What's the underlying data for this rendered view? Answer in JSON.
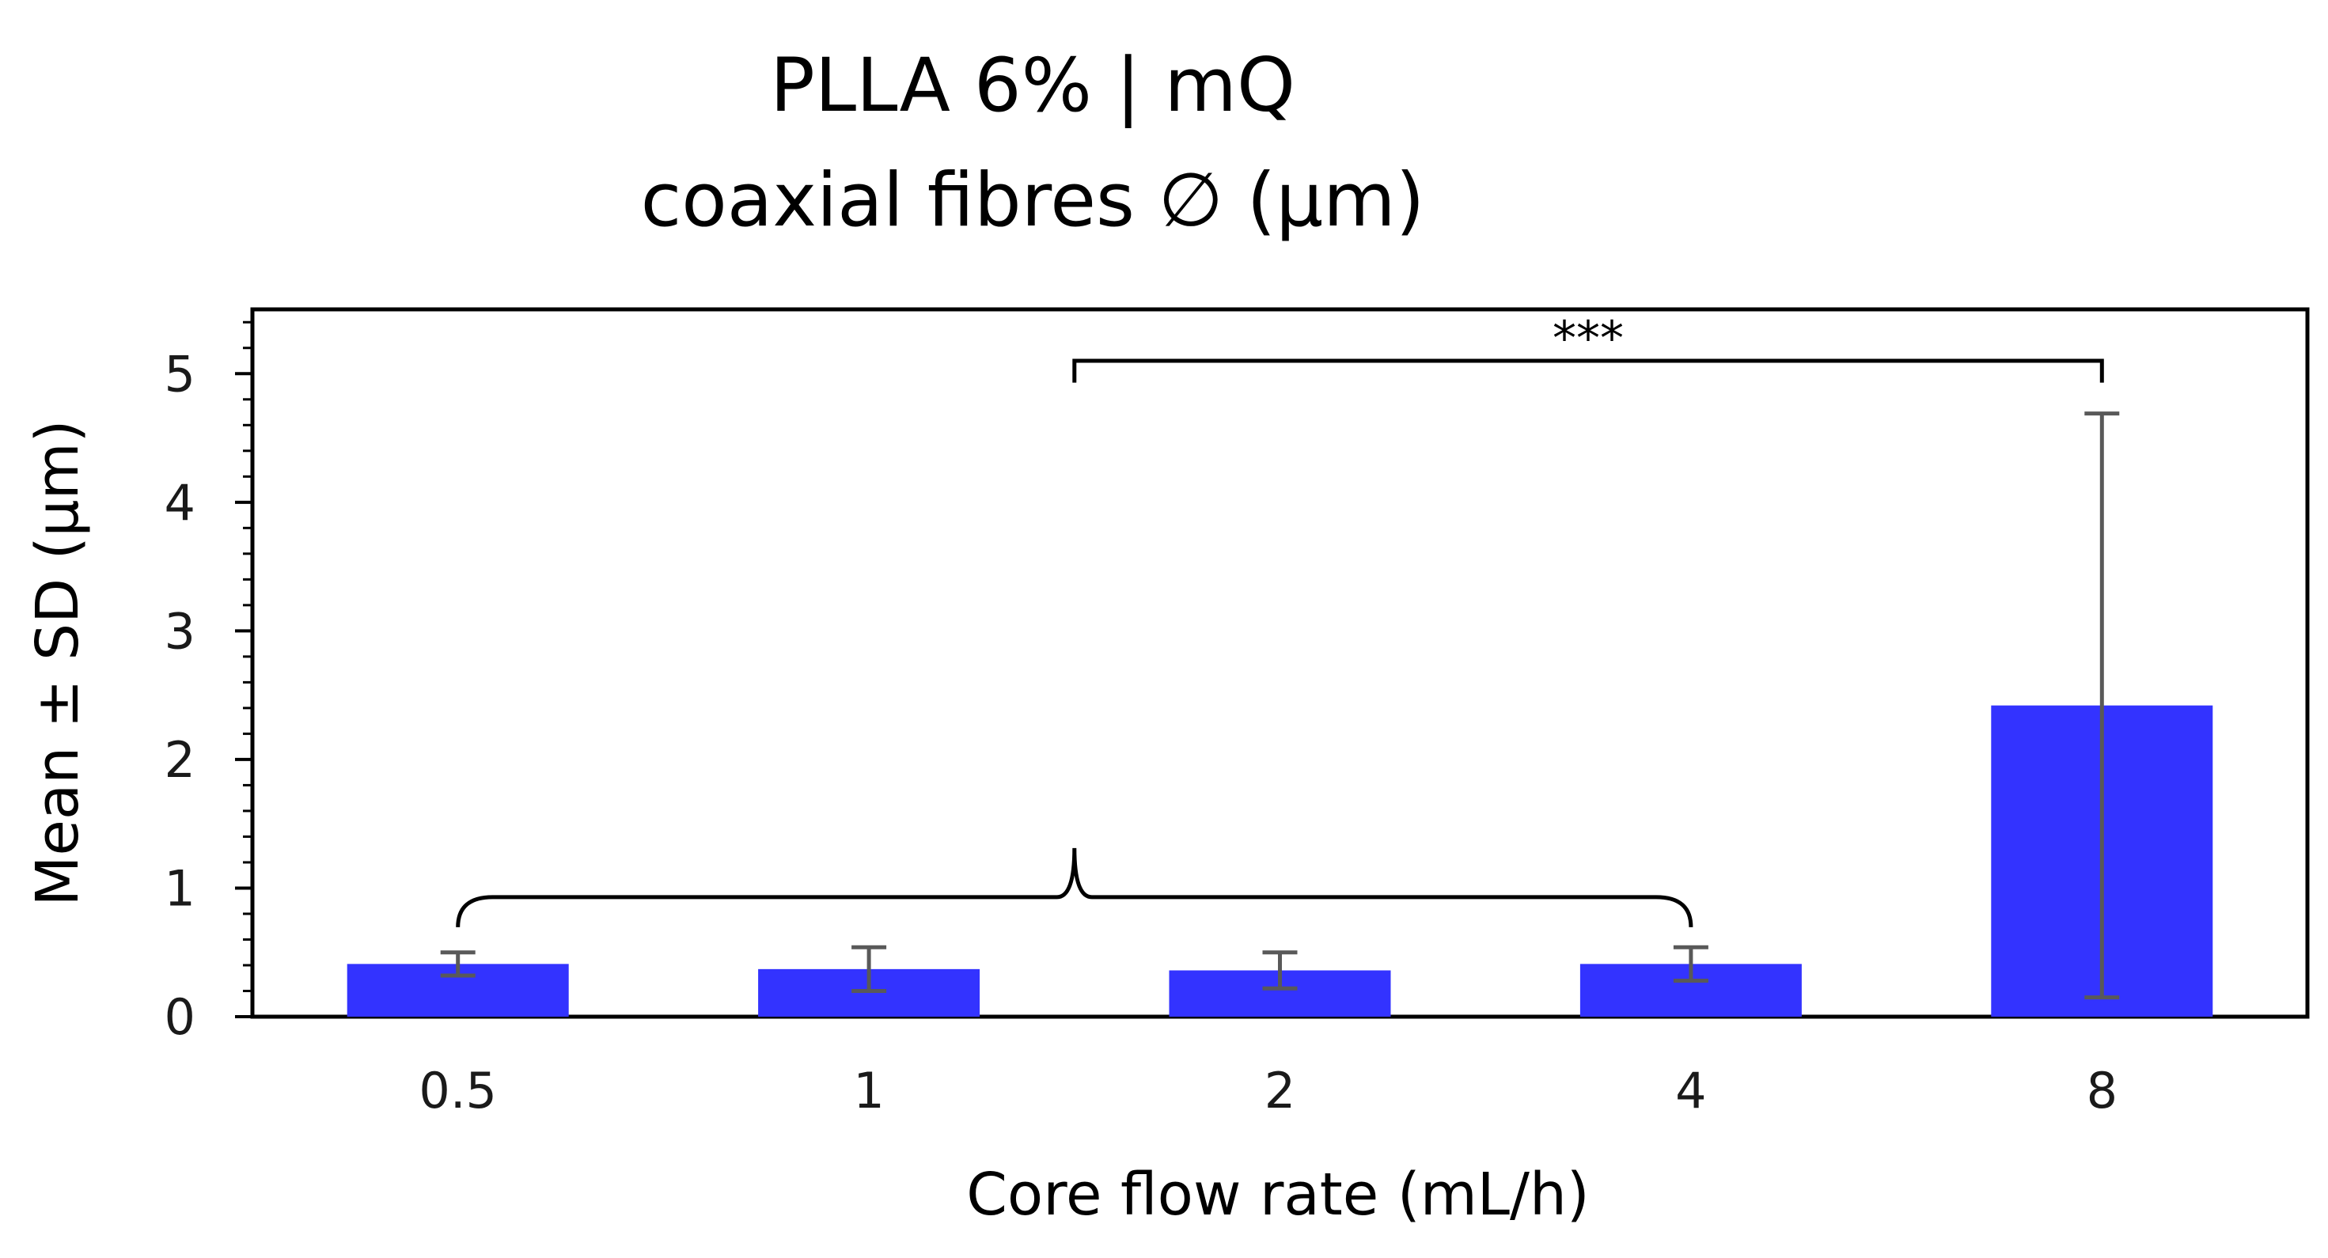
{
  "chart_data": {
    "type": "bar",
    "title": [
      "PLLA 6% | mQ",
      "coaxial fibres ∅ (μm)"
    ],
    "xlabel": "Core flow rate (mL/h)",
    "ylabel": "Mean ± SD (μm)",
    "categories": [
      "0.5",
      "1",
      "2",
      "4",
      "8"
    ],
    "values": [
      0.41,
      0.37,
      0.36,
      0.41,
      2.42
    ],
    "errors": [
      0.09,
      0.17,
      0.14,
      0.13,
      2.27
    ],
    "ylim": [
      0,
      5.5
    ],
    "yticks": [
      0,
      1,
      2,
      3,
      4,
      5
    ],
    "ytick_labels": [
      "0",
      "1",
      "2",
      "3",
      "4",
      "5"
    ],
    "grid": false,
    "legend": "none",
    "colors": {
      "bar": "#3333ff",
      "error": "#595959",
      "axis": "#000000"
    },
    "annotations": [
      {
        "type": "significance",
        "label": "***",
        "group_from": "0.5",
        "group_to": "4",
        "compared_to": "8"
      }
    ]
  }
}
